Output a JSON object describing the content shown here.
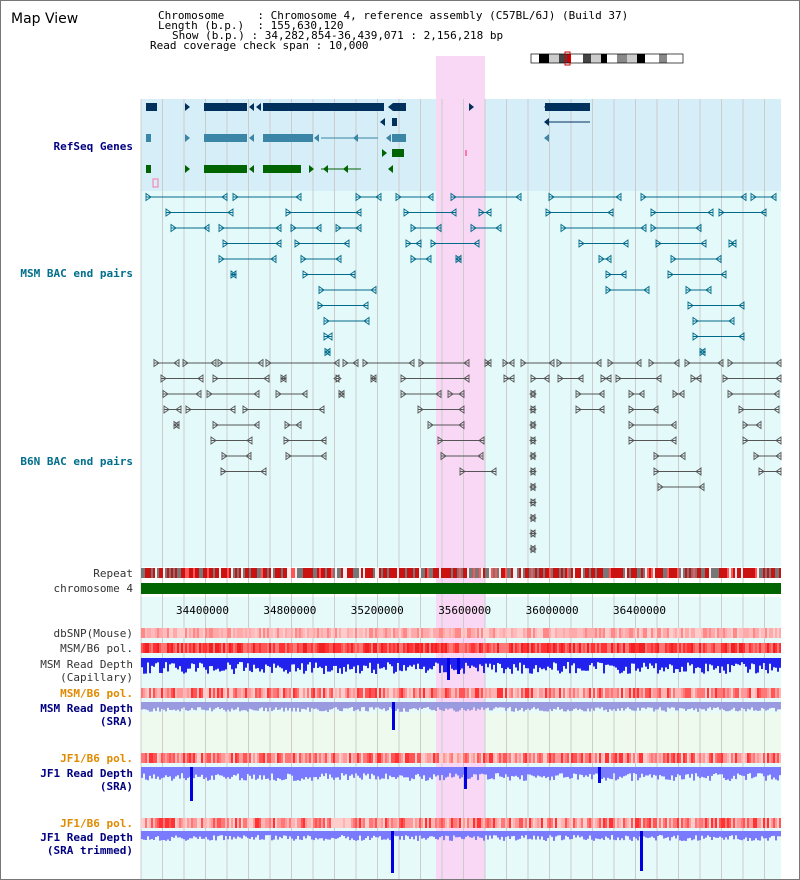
{
  "window": {
    "title": "Map View"
  },
  "info": {
    "chromosome_key": "Chromosome",
    "chromosome_val": ": Chromosome 4, reference assembly (C57BL/6J) (Build 37)",
    "length_key": "Length (b.p.)",
    "length_val": ": 155,630,120",
    "show_key": "Show (b.p.)",
    "show_val": ": 34,282,854-36,439,071 : 2,156,218 bp",
    "span_key": "Read coverage check span",
    "span_val": ": 10,000"
  },
  "tracks": {
    "refseq": "RefSeq Genes",
    "msm_bac": "MSM BAC end pairs",
    "b6n_bac": "B6N BAC end pairs",
    "repeat": "Repeat",
    "chromosome": "chromosome 4",
    "dbsnp": "dbSNP(Mouse)",
    "msm_b6_pol_1": "MSM/B6 pol.",
    "msm_depth_cap_1": "MSM Read Depth",
    "msm_depth_cap_2": "(Capillary)",
    "msm_b6_pol_2": "MSM/B6 pol.",
    "msm_depth_sra_1": "MSM Read Depth",
    "msm_depth_sra_2": "(SRA)",
    "jf1_b6_pol_1": "JF1/B6 pol.",
    "jf1_depth_sra_1": "JF1 Read Depth",
    "jf1_depth_sra_2": "(SRA)",
    "jf1_b6_pol_2": "JF1/B6 pol.",
    "jf1_depth_trim_1": "JF1 Read Depth",
    "jf1_depth_trim_2": "(SRA trimmed)"
  },
  "axis": {
    "ticks": [
      "34400000",
      "34800000",
      "35200000",
      "35600000",
      "36000000",
      "36400000"
    ]
  },
  "colors": {
    "highlight": "#f9d8f5",
    "refseq_bg": "#d6eef8",
    "bac_bg": "#e4fafa",
    "gene_navy": "#00305c",
    "gene_teal": "#3b86a6",
    "gene_green": "#006400",
    "msm_bac": "#006a8a",
    "b6n_bac": "#555555",
    "depth_blue": "#0000e0",
    "depth_light": "#7a7aff",
    "chromosome_bar": "#006400"
  }
}
